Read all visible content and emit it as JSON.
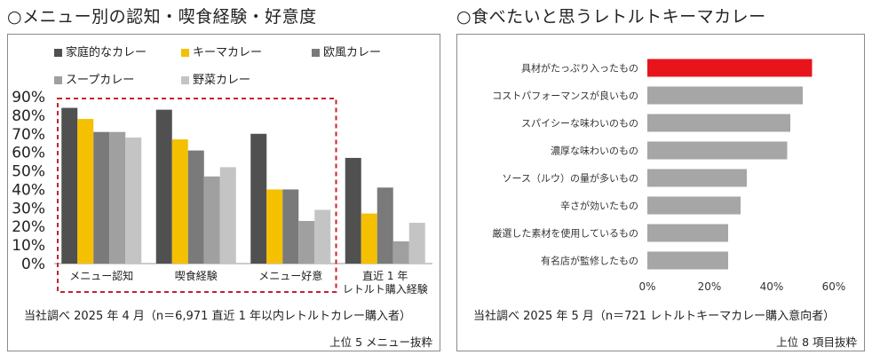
{
  "left": {
    "title": "○メニュー別の認知・喫食経験・好意度",
    "footnote": "当社調べ 2025 年 4 月（n＝6,971 直近 1 年以内レトルトカレー購入者）",
    "source": "上位 5 メニュー抜粋",
    "highlight_box_color": "#c8202e",
    "chart_data": {
      "type": "bar",
      "categories": [
        "メニュー認知",
        "喫食経験",
        "メニュー好意",
        "直近 1 年\nレトルト購入経験"
      ],
      "y_ticks": [
        "0%",
        "10%",
        "20%",
        "30%",
        "40%",
        "50%",
        "60%",
        "70%",
        "80%",
        "90%"
      ],
      "ylim": [
        0,
        90
      ],
      "legend_placement": "top",
      "series": [
        {
          "name": "家庭的なカレー",
          "color": "#505050",
          "values": [
            84,
            83,
            70,
            57
          ]
        },
        {
          "name": "キーマカレー",
          "color": "#f4c000",
          "values": [
            78,
            67,
            40,
            27
          ]
        },
        {
          "name": "欧風カレー",
          "color": "#7a7a7a",
          "values": [
            71,
            61,
            40,
            41
          ]
        },
        {
          "name": "スープカレー",
          "color": "#a0a0a0",
          "values": [
            71,
            47,
            23,
            12
          ]
        },
        {
          "name": "野菜カレー",
          "color": "#c4c4c4",
          "values": [
            68,
            52,
            29,
            22
          ]
        }
      ]
    }
  },
  "right": {
    "title": "○食べたいと思うレトルトキーマカレー",
    "footnote": "当社調べ 2025 年 5 月（n＝721 レトルトキーマカレー購入意向者）",
    "source": "上位 8 項目抜粋",
    "chart_data": {
      "type": "bar",
      "orientation": "horizontal",
      "categories": [
        "具材がたっぷり入ったもの",
        "コストパフォーマンスが良いもの",
        "スパイシーな味わいのもの",
        "濃厚な味わいのもの",
        "ソース（ルウ）の量が多いもの",
        "辛さが効いたもの",
        "厳選した素材を使用しているもの",
        "有名店が監修したもの"
      ],
      "values": [
        53,
        50,
        46,
        45,
        32,
        30,
        26,
        26
      ],
      "x_ticks": [
        "0%",
        "20%",
        "40%",
        "60%"
      ],
      "xlim": [
        0,
        60
      ],
      "highlight_color": "#e8141c",
      "bar_color": "#a6a6a6"
    }
  }
}
